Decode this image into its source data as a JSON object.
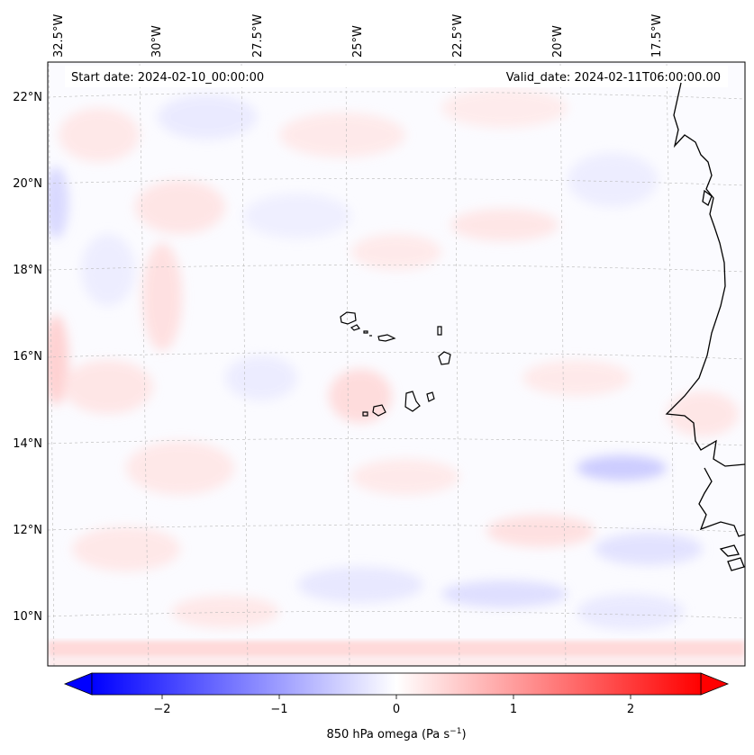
{
  "map": {
    "start_date": "Start date: 2024-02-10_00:00:00",
    "valid_date": "Valid_date: 2024-02-11T06:00:00.00",
    "lon_ticks": [
      "32.5°W",
      "30°W",
      "27.5°W",
      "25°W",
      "22.5°W",
      "20°W",
      "17.5°W"
    ],
    "lat_ticks": [
      "22°N",
      "20°N",
      "18°N",
      "16°N",
      "14°N",
      "12°N",
      "10°N"
    ],
    "colors": {
      "negative": "#0000ff",
      "zero": "#ffffff",
      "positive": "#ff0000",
      "coastline": "#000000"
    }
  },
  "colorbar": {
    "min": -2.6,
    "max": 2.6,
    "ticks": [
      {
        "value": -2,
        "label": "−2"
      },
      {
        "value": -1,
        "label": "−1"
      },
      {
        "value": 0,
        "label": "0"
      },
      {
        "value": 1,
        "label": "1"
      },
      {
        "value": 2,
        "label": "2"
      }
    ],
    "label_main": "850 hPa omega (Pa s",
    "label_sup": "−1",
    "label_end": ")"
  }
}
